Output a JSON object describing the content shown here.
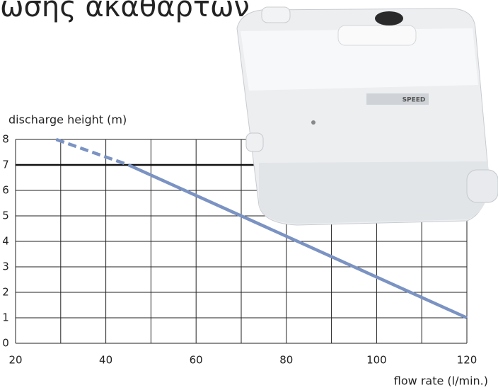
{
  "chart_data": {
    "type": "line",
    "title": "ωσης ακαθαρτων",
    "y_label": "discharge height (m)",
    "x_label": "flow rate  (l/min.)",
    "product_label": "SPEED",
    "xlim": [
      20,
      120
    ],
    "ylim": [
      0,
      8
    ],
    "xticks": [
      20,
      40,
      60,
      80,
      100,
      120
    ],
    "xgrid": [
      20,
      30,
      40,
      50,
      60,
      70,
      80,
      90,
      100,
      110,
      120
    ],
    "yticks": [
      0,
      1,
      2,
      3,
      4,
      5,
      6,
      7,
      8
    ],
    "grid": true,
    "reference_line": 7,
    "series": [
      {
        "color": "#7b93c3",
        "dashed": true,
        "x": [
          29,
          45
        ],
        "values": [
          8,
          7
        ]
      },
      {
        "color": "#7b93c3",
        "dashed": false,
        "x": [
          45,
          120
        ],
        "values": [
          7,
          1
        ]
      }
    ]
  }
}
